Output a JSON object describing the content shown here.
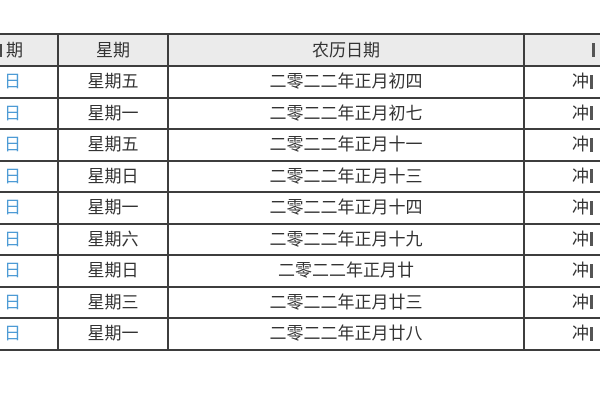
{
  "table": {
    "header": {
      "gregorian": "期",
      "weekday": "星期",
      "lunar": "农历日期",
      "chongsha": ""
    },
    "rows": [
      {
        "gregorian": "日",
        "weekday": "星期五",
        "lunar": "二零二二年正月初四",
        "chongsha": "冲"
      },
      {
        "gregorian": "日",
        "weekday": "星期一",
        "lunar": "二零二二年正月初七",
        "chongsha": "冲"
      },
      {
        "gregorian": "日",
        "weekday": "星期五",
        "lunar": "二零二二年正月十一",
        "chongsha": "冲"
      },
      {
        "gregorian": "日",
        "weekday": "星期日",
        "lunar": "二零二二年正月十三",
        "chongsha": "冲"
      },
      {
        "gregorian": "日",
        "weekday": "星期一",
        "lunar": "二零二二年正月十四",
        "chongsha": "冲"
      },
      {
        "gregorian": "日",
        "weekday": "星期六",
        "lunar": "二零二二年正月十九",
        "chongsha": "冲"
      },
      {
        "gregorian": "日",
        "weekday": "星期日",
        "lunar": "二零二二年正月廿",
        "chongsha": "冲"
      },
      {
        "gregorian": "日",
        "weekday": "星期三",
        "lunar": "二零二二年正月廿三",
        "chongsha": "冲"
      },
      {
        "gregorian": "日",
        "weekday": "星期一",
        "lunar": "二零二二年正月廿八",
        "chongsha": "冲"
      }
    ],
    "colors": {
      "border": "#3d3d3d",
      "header_bg": "#ebebeb",
      "link_blue": "#4d9bd5",
      "text": "#333333"
    }
  }
}
